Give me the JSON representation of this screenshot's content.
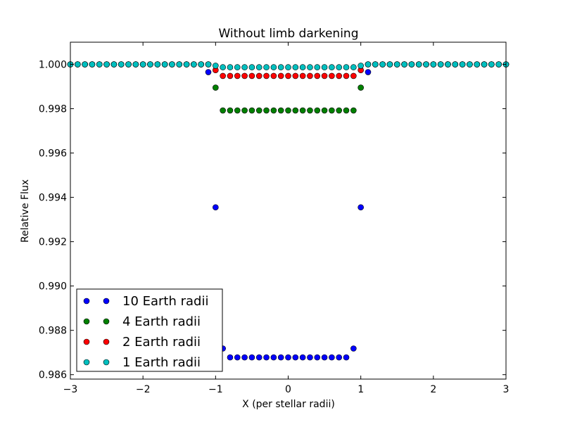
{
  "chart_data": {
    "type": "scatter",
    "title": "Without limb darkening",
    "xlabel": "X (per stellar radii)",
    "ylabel": "Relative Flux",
    "xlim": [
      -3,
      3
    ],
    "ylim": [
      0.9858,
      1.001
    ],
    "xticks": [
      -3,
      -2,
      -1,
      0,
      1,
      2,
      3
    ],
    "xtick_labels": [
      "−3",
      "−2",
      "−1",
      "0",
      "1",
      "2",
      "3"
    ],
    "yticks": [
      0.986,
      0.988,
      0.99,
      0.992,
      0.994,
      0.996,
      0.998,
      1.0
    ],
    "ytick_labels": [
      "0.986",
      "0.988",
      "0.990",
      "0.992",
      "0.994",
      "0.996",
      "0.998",
      "1.000"
    ],
    "grid": false,
    "legend_position": "lower-left",
    "series": [
      {
        "name": "10 Earth radii",
        "color": "#0000ff",
        "x": [
          -3.0,
          -2.9,
          -2.8,
          -2.7,
          -2.6,
          -2.5,
          -2.4,
          -2.3,
          -2.2,
          -2.1,
          -2.0,
          -1.9,
          -1.8,
          -1.7,
          -1.6,
          -1.5,
          -1.4,
          -1.3,
          -1.2,
          -1.1,
          -1.0,
          -0.9,
          -0.8,
          -0.7,
          -0.6,
          -0.5,
          -0.4,
          -0.3,
          -0.2,
          -0.1,
          0.0,
          0.1,
          0.2,
          0.3,
          0.4,
          0.5,
          0.6,
          0.7,
          0.8,
          0.9,
          1.0,
          1.1,
          1.2,
          1.3,
          1.4,
          1.5,
          1.6,
          1.7,
          1.8,
          1.9,
          2.0,
          2.1,
          2.2,
          2.3,
          2.4,
          2.5,
          2.6,
          2.7,
          2.8,
          2.9,
          3.0
        ],
        "y": [
          1.0,
          1.0,
          1.0,
          1.0,
          1.0,
          1.0,
          1.0,
          1.0,
          1.0,
          1.0,
          1.0,
          1.0,
          1.0,
          1.0,
          1.0,
          1.0,
          1.0,
          1.0,
          1.0,
          0.99965,
          0.99355,
          0.98718,
          0.98678,
          0.98678,
          0.98678,
          0.98678,
          0.98678,
          0.98678,
          0.98678,
          0.98678,
          0.98678,
          0.98678,
          0.98678,
          0.98678,
          0.98678,
          0.98678,
          0.98678,
          0.98678,
          0.98678,
          0.98718,
          0.99355,
          0.99965,
          1.0,
          1.0,
          1.0,
          1.0,
          1.0,
          1.0,
          1.0,
          1.0,
          1.0,
          1.0,
          1.0,
          1.0,
          1.0,
          1.0,
          1.0,
          1.0,
          1.0,
          1.0,
          1.0
        ]
      },
      {
        "name": "4 Earth radii",
        "color": "#008000",
        "x": [
          -3.0,
          -2.9,
          -2.8,
          -2.7,
          -2.6,
          -2.5,
          -2.4,
          -2.3,
          -2.2,
          -2.1,
          -2.0,
          -1.9,
          -1.8,
          -1.7,
          -1.6,
          -1.5,
          -1.4,
          -1.3,
          -1.2,
          -1.1,
          -1.0,
          -0.9,
          -0.8,
          -0.7,
          -0.6,
          -0.5,
          -0.4,
          -0.3,
          -0.2,
          -0.1,
          0.0,
          0.1,
          0.2,
          0.3,
          0.4,
          0.5,
          0.6,
          0.7,
          0.8,
          0.9,
          1.0,
          1.1,
          1.2,
          1.3,
          1.4,
          1.5,
          1.6,
          1.7,
          1.8,
          1.9,
          2.0,
          2.1,
          2.2,
          2.3,
          2.4,
          2.5,
          2.6,
          2.7,
          2.8,
          2.9,
          3.0
        ],
        "y": [
          1.0,
          1.0,
          1.0,
          1.0,
          1.0,
          1.0,
          1.0,
          1.0,
          1.0,
          1.0,
          1.0,
          1.0,
          1.0,
          1.0,
          1.0,
          1.0,
          1.0,
          1.0,
          1.0,
          1.0,
          0.99895,
          0.99792,
          0.99792,
          0.99792,
          0.99792,
          0.99792,
          0.99792,
          0.99792,
          0.99792,
          0.99792,
          0.99792,
          0.99792,
          0.99792,
          0.99792,
          0.99792,
          0.99792,
          0.99792,
          0.99792,
          0.99792,
          0.99792,
          0.99895,
          1.0,
          1.0,
          1.0,
          1.0,
          1.0,
          1.0,
          1.0,
          1.0,
          1.0,
          1.0,
          1.0,
          1.0,
          1.0,
          1.0,
          1.0,
          1.0,
          1.0,
          1.0,
          1.0,
          1.0
        ]
      },
      {
        "name": "2 Earth radii",
        "color": "#ff0000",
        "x": [
          -3.0,
          -2.9,
          -2.8,
          -2.7,
          -2.6,
          -2.5,
          -2.4,
          -2.3,
          -2.2,
          -2.1,
          -2.0,
          -1.9,
          -1.8,
          -1.7,
          -1.6,
          -1.5,
          -1.4,
          -1.3,
          -1.2,
          -1.1,
          -1.0,
          -0.9,
          -0.8,
          -0.7,
          -0.6,
          -0.5,
          -0.4,
          -0.3,
          -0.2,
          -0.1,
          0.0,
          0.1,
          0.2,
          0.3,
          0.4,
          0.5,
          0.6,
          0.7,
          0.8,
          0.9,
          1.0,
          1.1,
          1.2,
          1.3,
          1.4,
          1.5,
          1.6,
          1.7,
          1.8,
          1.9,
          2.0,
          2.1,
          2.2,
          2.3,
          2.4,
          2.5,
          2.6,
          2.7,
          2.8,
          2.9,
          3.0
        ],
        "y": [
          1.0,
          1.0,
          1.0,
          1.0,
          1.0,
          1.0,
          1.0,
          1.0,
          1.0,
          1.0,
          1.0,
          1.0,
          1.0,
          1.0,
          1.0,
          1.0,
          1.0,
          1.0,
          1.0,
          1.0,
          0.99974,
          0.99948,
          0.99948,
          0.99948,
          0.99948,
          0.99948,
          0.99948,
          0.99948,
          0.99948,
          0.99948,
          0.99948,
          0.99948,
          0.99948,
          0.99948,
          0.99948,
          0.99948,
          0.99948,
          0.99948,
          0.99948,
          0.99948,
          0.99974,
          1.0,
          1.0,
          1.0,
          1.0,
          1.0,
          1.0,
          1.0,
          1.0,
          1.0,
          1.0,
          1.0,
          1.0,
          1.0,
          1.0,
          1.0,
          1.0,
          1.0,
          1.0,
          1.0,
          1.0
        ]
      },
      {
        "name": "1 Earth radii",
        "color": "#00bfbf",
        "x": [
          -3.0,
          -2.9,
          -2.8,
          -2.7,
          -2.6,
          -2.5,
          -2.4,
          -2.3,
          -2.2,
          -2.1,
          -2.0,
          -1.9,
          -1.8,
          -1.7,
          -1.6,
          -1.5,
          -1.4,
          -1.3,
          -1.2,
          -1.1,
          -1.0,
          -0.9,
          -0.8,
          -0.7,
          -0.6,
          -0.5,
          -0.4,
          -0.3,
          -0.2,
          -0.1,
          0.0,
          0.1,
          0.2,
          0.3,
          0.4,
          0.5,
          0.6,
          0.7,
          0.8,
          0.9,
          1.0,
          1.1,
          1.2,
          1.3,
          1.4,
          1.5,
          1.6,
          1.7,
          1.8,
          1.9,
          2.0,
          2.1,
          2.2,
          2.3,
          2.4,
          2.5,
          2.6,
          2.7,
          2.8,
          2.9,
          3.0
        ],
        "y": [
          1.0,
          1.0,
          1.0,
          1.0,
          1.0,
          1.0,
          1.0,
          1.0,
          1.0,
          1.0,
          1.0,
          1.0,
          1.0,
          1.0,
          1.0,
          1.0,
          1.0,
          1.0,
          1.0,
          1.0,
          0.99994,
          0.99987,
          0.99987,
          0.99987,
          0.99987,
          0.99987,
          0.99987,
          0.99987,
          0.99987,
          0.99987,
          0.99987,
          0.99987,
          0.99987,
          0.99987,
          0.99987,
          0.99987,
          0.99987,
          0.99987,
          0.99987,
          0.99987,
          0.99994,
          1.0,
          1.0,
          1.0,
          1.0,
          1.0,
          1.0,
          1.0,
          1.0,
          1.0,
          1.0,
          1.0,
          1.0,
          1.0,
          1.0,
          1.0,
          1.0,
          1.0,
          1.0,
          1.0,
          1.0
        ]
      }
    ]
  }
}
